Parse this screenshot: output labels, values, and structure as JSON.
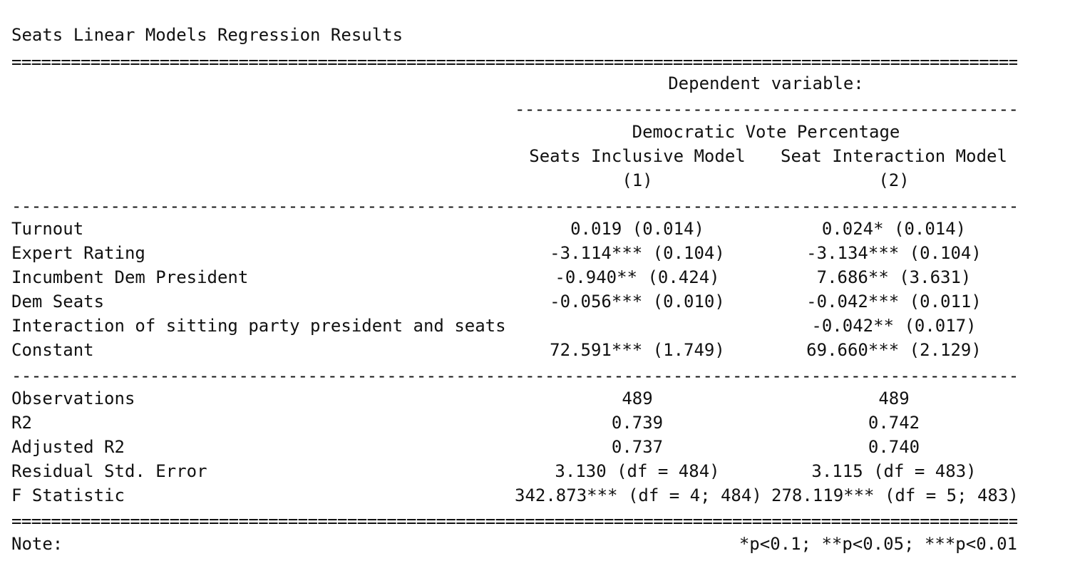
{
  "title": "Seats Linear Models Regression Results",
  "header": {
    "dependent_variable_label": "Dependent variable:",
    "dependent_variable": "Democratic Vote Percentage",
    "models": [
      {
        "name": "Seats Inclusive Model",
        "number": "(1)"
      },
      {
        "name": "Seat Interaction Model",
        "number": "(2)"
      }
    ]
  },
  "coefficients": [
    {
      "label": "Turnout",
      "m1": "0.019 (0.014)",
      "m2": "0.024* (0.014)"
    },
    {
      "label": "Expert Rating",
      "m1": "-3.114*** (0.104)",
      "m2": "-3.134*** (0.104)"
    },
    {
      "label": "Incumbent Dem President",
      "m1": "-0.940** (0.424)",
      "m2": "7.686** (3.631)"
    },
    {
      "label": "Dem Seats",
      "m1": "-0.056*** (0.010)",
      "m2": "-0.042*** (0.011)"
    },
    {
      "label": "Interaction of sitting party president and seats",
      "m1": "",
      "m2": "-0.042** (0.017)"
    },
    {
      "label": "Constant",
      "m1": "72.591*** (1.749)",
      "m2": "69.660*** (2.129)"
    }
  ],
  "statistics": [
    {
      "label": "Observations",
      "m1": "489",
      "m2": "489"
    },
    {
      "label": "R2",
      "m1": "0.739",
      "m2": "0.742"
    },
    {
      "label": "Adjusted R2",
      "m1": "0.737",
      "m2": "0.740"
    },
    {
      "label": "Residual Std. Error",
      "m1": "3.130 (df = 484)",
      "m2": "3.115 (df = 483)"
    },
    {
      "label": "F Statistic",
      "m1": "342.873*** (df = 4; 484)",
      "m2": "278.119*** (df = 5; 483)"
    }
  ],
  "note": {
    "label": "Note:",
    "text": "*p<0.1; **p<0.05; ***p<0.01"
  }
}
